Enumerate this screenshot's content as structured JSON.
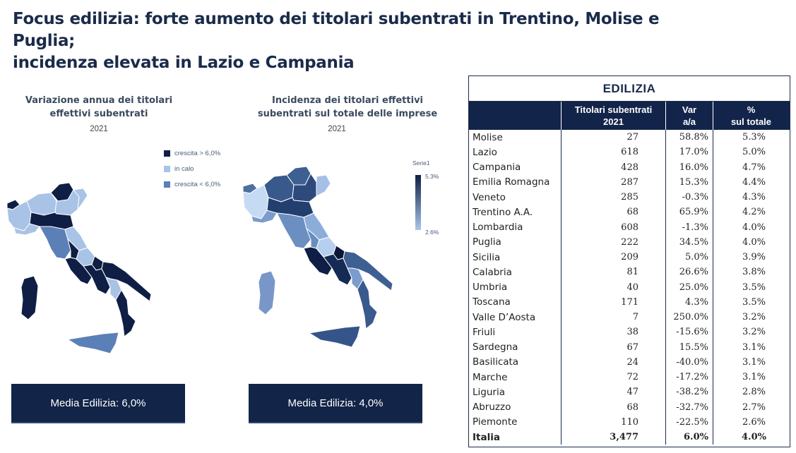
{
  "title": {
    "line1": "Focus edilizia: forte aumento dei titolari subentrati in Trentino, Molise e Puglia;",
    "line2": "incidenza elevata in Lazio e Campania"
  },
  "map1": {
    "title_line1": "Variazione annua dei titolari",
    "title_line2": "effettivi subentrati",
    "year": "2021",
    "legend": [
      {
        "label": "crescita > 6,0%",
        "color": "#0f1e44"
      },
      {
        "label": "in calo",
        "color": "#a9c3e6"
      },
      {
        "label": "crescita < 6,0%",
        "color": "#5b80b8"
      }
    ],
    "media_label": "Media Edilizia: 6,0%"
  },
  "map2": {
    "title_line1": "Incidenza dei titolari effettivi",
    "title_line2": "subentrati sul totale delle imprese",
    "year": "2021",
    "legend_title": "Serie1",
    "legend_max": "5.3%",
    "legend_min": "2.6%",
    "media_label": "Media Edilizia: 4,0%"
  },
  "table": {
    "title": "EDILIZIA",
    "headers": {
      "titolari_line1": "Titolari subentrati",
      "titolari_line2": "2021",
      "var_line1": "Var",
      "var_line2": "a/a",
      "pct_line1": "%",
      "pct_line2": "sul totale"
    },
    "rows": [
      {
        "region": "Molise",
        "titolari": "27",
        "var": "58.8%",
        "pct": "5.3%"
      },
      {
        "region": "Lazio",
        "titolari": "618",
        "var": "17.0%",
        "pct": "5.0%"
      },
      {
        "region": "Campania",
        "titolari": "428",
        "var": "16.0%",
        "pct": "4.7%"
      },
      {
        "region": "Emilia Romagna",
        "titolari": "287",
        "var": "15.3%",
        "pct": "4.4%"
      },
      {
        "region": "Veneto",
        "titolari": "285",
        "var": "-0.3%",
        "pct": "4.3%"
      },
      {
        "region": "Trentino A.A.",
        "titolari": "68",
        "var": "65.9%",
        "pct": "4.2%"
      },
      {
        "region": "Lombardia",
        "titolari": "608",
        "var": "-1.3%",
        "pct": "4.0%"
      },
      {
        "region": "Puglia",
        "titolari": "222",
        "var": "34.5%",
        "pct": "4.0%"
      },
      {
        "region": "Sicilia",
        "titolari": "209",
        "var": "5.0%",
        "pct": "3.9%"
      },
      {
        "region": "Calabria",
        "titolari": "81",
        "var": "26.6%",
        "pct": "3.8%"
      },
      {
        "region": "Umbria",
        "titolari": "40",
        "var": "25.0%",
        "pct": "3.5%"
      },
      {
        "region": "Toscana",
        "titolari": "171",
        "var": "4.3%",
        "pct": "3.5%"
      },
      {
        "region": "Valle D’Aosta",
        "titolari": "7",
        "var": "250.0%",
        "pct": "3.2%"
      },
      {
        "region": "Friuli",
        "titolari": "38",
        "var": "-15.6%",
        "pct": "3.2%"
      },
      {
        "region": "Sardegna",
        "titolari": "67",
        "var": "15.5%",
        "pct": "3.1%"
      },
      {
        "region": "Basilicata",
        "titolari": "24",
        "var": "-40.0%",
        "pct": "3.1%"
      },
      {
        "region": "Marche",
        "titolari": "72",
        "var": "-17.2%",
        "pct": "3.1%"
      },
      {
        "region": "Liguria",
        "titolari": "47",
        "var": "-38.2%",
        "pct": "2.8%"
      },
      {
        "region": "Abruzzo",
        "titolari": "68",
        "var": "-32.7%",
        "pct": "2.7%"
      },
      {
        "region": "Piemonte",
        "titolari": "110",
        "var": "-22.5%",
        "pct": "2.6%"
      }
    ],
    "total": {
      "region": "Italia",
      "titolari": "3,477",
      "var": "6.0%",
      "pct": "4.0%"
    }
  }
}
